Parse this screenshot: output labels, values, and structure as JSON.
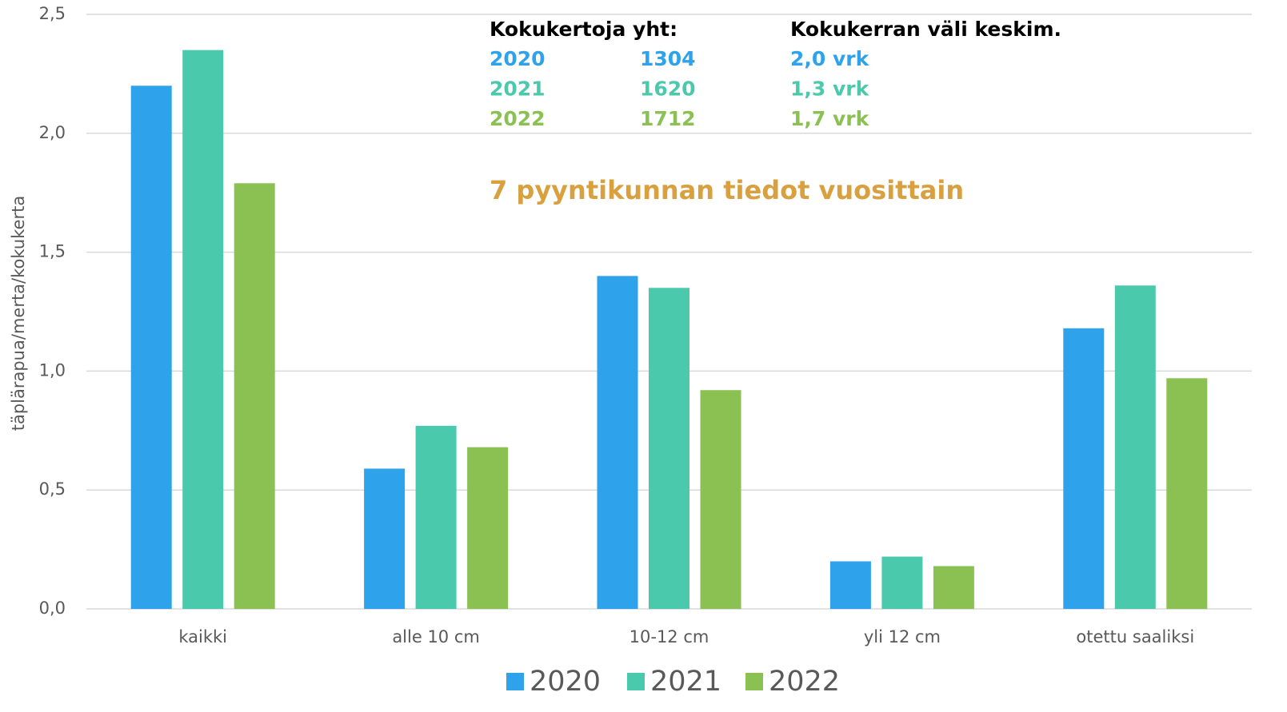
{
  "chart_data": {
    "type": "bar",
    "y_label": "täplärapua/merta/kokukerta",
    "subtitle": "7 pyyntikunnan tiedot vuosittain",
    "subtitle_color": "#d9a040",
    "info_table": {
      "headers": [
        "Kokukertoja yht:",
        "Kokukerran väli keskim."
      ],
      "rows": [
        [
          "2020",
          "1304",
          "2,0 vrk"
        ],
        [
          "2021",
          "1620",
          "1,3 vrk"
        ],
        [
          "2022",
          "1712",
          "1,7 vrk"
        ]
      ]
    },
    "categories": [
      "kaikki",
      "alle 10 cm",
      "10-12 cm",
      "yli 12 cm",
      "otettu saaliksi"
    ],
    "series": [
      {
        "name": "2020",
        "color": "#2ea3ec",
        "values": [
          2.2,
          0.59,
          1.4,
          0.2,
          1.18
        ]
      },
      {
        "name": "2021",
        "color": "#4bc9ad",
        "values": [
          2.35,
          0.77,
          1.35,
          0.22,
          1.36
        ]
      },
      {
        "name": "2022",
        "color": "#8bc153",
        "values": [
          1.79,
          0.68,
          0.92,
          0.18,
          0.97
        ]
      }
    ],
    "ylim": [
      0,
      2.5
    ],
    "yticks": [
      {
        "value": 0,
        "label": "0,0"
      },
      {
        "value": 0.5,
        "label": "0,5"
      },
      {
        "value": 1,
        "label": "1,0"
      },
      {
        "value": 1.5,
        "label": "1,5"
      },
      {
        "value": 2,
        "label": "2,0"
      },
      {
        "value": 2.5,
        "label": "2,5"
      }
    ],
    "grid": true,
    "legend": "bottom"
  }
}
